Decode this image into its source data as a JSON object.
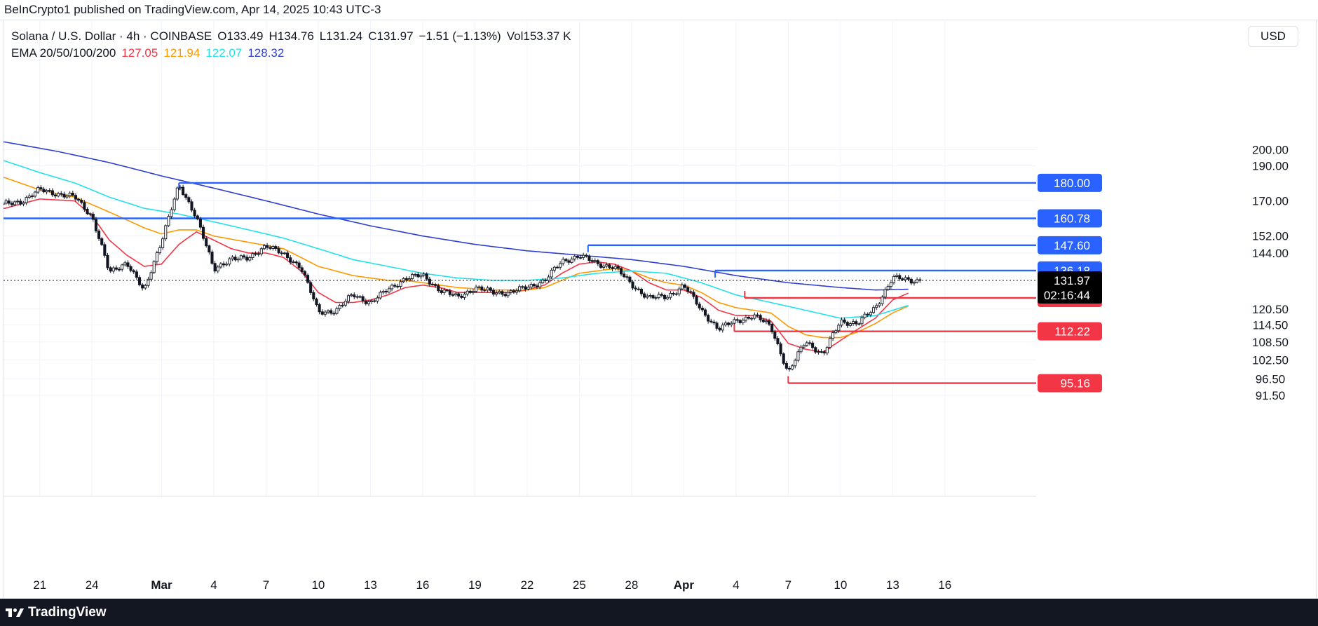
{
  "header": {
    "attribution": "BeInCrypto1 published on TradingView.com, Apr 14, 2025 10:43 UTC-3"
  },
  "legend": {
    "symbol": "Solana / U.S. Dollar · 4h · COINBASE",
    "open": "O133.49",
    "high": "H134.76",
    "low": "L131.24",
    "close": "C131.97",
    "change": "−1.51 (−1.13%)",
    "volume": "Vol153.37 K",
    "ema_label": "EMA 20/50/100/200",
    "ema_values": [
      {
        "value": "127.05",
        "color": "#f23645"
      },
      {
        "value": "121.94",
        "color": "#ff9800"
      },
      {
        "value": "122.07",
        "color": "#22e1e8"
      },
      {
        "value": "128.32",
        "color": "#2e3fcf"
      }
    ]
  },
  "currency_button": "USD",
  "footer": {
    "brand": "TradingView"
  },
  "colors": {
    "resistance": "#2962ff",
    "support": "#f23645",
    "candle": "#131722",
    "ema20": "#f23645",
    "ema50": "#ff9800",
    "ema100": "#22e1e8",
    "ema200": "#2e3fcf",
    "grid": "#f0f3fa"
  },
  "chart_data": {
    "type": "candlestick",
    "title": "Solana / U.S. Dollar · 4h · COINBASE",
    "timeframe": "4h",
    "y_scale": "log",
    "ylim": [
      89.5,
      216
    ],
    "xlim_days": [
      "Feb 19",
      "Apr 20"
    ],
    "y_ticks": [
      "200.00",
      "190.00",
      "170.00",
      "152.00",
      "144.00",
      "120.50",
      "114.50",
      "108.50",
      "102.50",
      "96.50",
      "91.50"
    ],
    "x_ticks": [
      {
        "label": "21",
        "day": 2
      },
      {
        "label": "24",
        "day": 5
      },
      {
        "label": "Mar",
        "day": 9,
        "bold": true
      },
      {
        "label": "4",
        "day": 12
      },
      {
        "label": "7",
        "day": 15
      },
      {
        "label": "10",
        "day": 18
      },
      {
        "label": "13",
        "day": 21
      },
      {
        "label": "16",
        "day": 24
      },
      {
        "label": "19",
        "day": 27
      },
      {
        "label": "22",
        "day": 30
      },
      {
        "label": "25",
        "day": 33
      },
      {
        "label": "28",
        "day": 36
      },
      {
        "label": "Apr",
        "day": 39,
        "bold": true
      },
      {
        "label": "4",
        "day": 42
      },
      {
        "label": "7",
        "day": 45
      },
      {
        "label": "10",
        "day": 48
      },
      {
        "label": "13",
        "day": 51
      },
      {
        "label": "16",
        "day": 54
      }
    ],
    "levels": [
      {
        "label": "180.00",
        "price": 180.0,
        "type": "resistance",
        "from_day": 10.0
      },
      {
        "label": "160.78",
        "price": 160.78,
        "type": "resistance",
        "from_day": -0.1
      },
      {
        "label": "147.60",
        "price": 147.6,
        "type": "resistance",
        "from_day": 33.5
      },
      {
        "label": "136.18",
        "price": 136.18,
        "type": "resistance",
        "from_day": 40.8
      },
      {
        "label": "124.81",
        "price": 124.81,
        "type": "support",
        "from_day": 42.5
      },
      {
        "label": "112.22",
        "price": 112.22,
        "type": "support",
        "from_day": 41.9
      },
      {
        "label": "95.16",
        "price": 95.16,
        "type": "support",
        "from_day": 45.0
      }
    ],
    "current_price": {
      "label": "131.97",
      "price": 131.97,
      "countdown": "02:16:44"
    },
    "close_anchors": [
      [
        0,
        168
      ],
      [
        1,
        170
      ],
      [
        2,
        176
      ],
      [
        3,
        174
      ],
      [
        4,
        172
      ],
      [
        5,
        162
      ],
      [
        6,
        135
      ],
      [
        7,
        140
      ],
      [
        8,
        127
      ],
      [
        9,
        150
      ],
      [
        10,
        178
      ],
      [
        11,
        162
      ],
      [
        12,
        136
      ],
      [
        13,
        142
      ],
      [
        14,
        141
      ],
      [
        15,
        148
      ],
      [
        16,
        143
      ],
      [
        17,
        138
      ],
      [
        18,
        119
      ],
      [
        19,
        120
      ],
      [
        20,
        126
      ],
      [
        21,
        123
      ],
      [
        22,
        128
      ],
      [
        23,
        133
      ],
      [
        24,
        134
      ],
      [
        25,
        128
      ],
      [
        26,
        125
      ],
      [
        27,
        129
      ],
      [
        28,
        127
      ],
      [
        29,
        127
      ],
      [
        30,
        129
      ],
      [
        31,
        132
      ],
      [
        32,
        140
      ],
      [
        33,
        143
      ],
      [
        34,
        139
      ],
      [
        35,
        138
      ],
      [
        36,
        130
      ],
      [
        37,
        125
      ],
      [
        38,
        125
      ],
      [
        39,
        130
      ],
      [
        40,
        120
      ],
      [
        41,
        113
      ],
      [
        42,
        116
      ],
      [
        43,
        118
      ],
      [
        44,
        114
      ],
      [
        45,
        98
      ],
      [
        46,
        109
      ],
      [
        47,
        104
      ],
      [
        48,
        116
      ],
      [
        49,
        115
      ],
      [
        50,
        121
      ],
      [
        51,
        133
      ],
      [
        52,
        132
      ],
      [
        52.6,
        131.97
      ]
    ],
    "ema": [
      {
        "name": "EMA 20",
        "value": 127.05,
        "color": "#f23645",
        "points": [
          [
            0,
            166
          ],
          [
            2,
            171
          ],
          [
            4,
            170
          ],
          [
            5,
            162
          ],
          [
            6,
            150
          ],
          [
            7,
            143
          ],
          [
            8,
            138
          ],
          [
            9,
            139
          ],
          [
            10,
            148
          ],
          [
            11,
            154
          ],
          [
            12,
            150
          ],
          [
            13,
            146
          ],
          [
            14,
            144
          ],
          [
            15,
            144
          ],
          [
            16,
            142
          ],
          [
            17,
            136
          ],
          [
            18,
            127
          ],
          [
            19,
            123
          ],
          [
            20,
            123
          ],
          [
            21,
            124
          ],
          [
            22,
            126
          ],
          [
            23,
            129
          ],
          [
            24,
            130
          ],
          [
            25,
            129
          ],
          [
            26,
            127
          ],
          [
            27,
            127
          ],
          [
            28,
            127
          ],
          [
            29,
            127
          ],
          [
            30,
            128
          ],
          [
            31,
            130
          ],
          [
            32,
            135
          ],
          [
            33,
            139
          ],
          [
            34,
            140
          ],
          [
            35,
            139
          ],
          [
            36,
            136
          ],
          [
            37,
            131
          ],
          [
            38,
            128
          ],
          [
            39,
            128
          ],
          [
            40,
            125
          ],
          [
            41,
            120
          ],
          [
            42,
            118
          ],
          [
            43,
            118
          ],
          [
            44,
            116
          ],
          [
            45,
            108
          ],
          [
            46,
            106
          ],
          [
            47,
            105
          ],
          [
            48,
            109
          ],
          [
            49,
            113
          ],
          [
            50,
            117
          ],
          [
            51,
            124
          ],
          [
            52,
            127.05
          ]
        ]
      },
      {
        "name": "EMA 50",
        "value": 121.94,
        "color": "#ff9800",
        "points": [
          [
            0,
            183
          ],
          [
            2,
            176
          ],
          [
            4,
            172
          ],
          [
            6,
            164
          ],
          [
            8,
            156
          ],
          [
            9,
            153
          ],
          [
            10,
            155
          ],
          [
            11,
            155
          ],
          [
            12,
            152
          ],
          [
            14,
            149
          ],
          [
            16,
            146
          ],
          [
            17,
            142
          ],
          [
            18,
            138
          ],
          [
            20,
            134
          ],
          [
            22,
            132
          ],
          [
            23,
            132
          ],
          [
            24,
            131
          ],
          [
            26,
            129
          ],
          [
            28,
            128
          ],
          [
            30,
            128
          ],
          [
            31,
            129
          ],
          [
            32,
            132
          ],
          [
            33,
            135
          ],
          [
            34,
            136
          ],
          [
            35,
            137
          ],
          [
            36,
            136
          ],
          [
            37,
            133
          ],
          [
            38,
            131
          ],
          [
            39,
            130
          ],
          [
            40,
            127
          ],
          [
            41,
            123
          ],
          [
            42,
            121
          ],
          [
            43,
            120
          ],
          [
            44,
            119
          ],
          [
            45,
            114
          ],
          [
            46,
            111
          ],
          [
            47,
            110
          ],
          [
            48,
            110
          ],
          [
            49,
            112
          ],
          [
            50,
            115
          ],
          [
            51,
            119
          ],
          [
            52,
            121.94
          ]
        ]
      },
      {
        "name": "EMA 100",
        "value": 122.07,
        "color": "#22e1e8",
        "points": [
          [
            0,
            193
          ],
          [
            2,
            186
          ],
          [
            4,
            180
          ],
          [
            6,
            172
          ],
          [
            8,
            166
          ],
          [
            10,
            163
          ],
          [
            12,
            159
          ],
          [
            14,
            155
          ],
          [
            16,
            151
          ],
          [
            18,
            146
          ],
          [
            20,
            141
          ],
          [
            22,
            138
          ],
          [
            24,
            135
          ],
          [
            26,
            133
          ],
          [
            28,
            132
          ],
          [
            30,
            132
          ],
          [
            32,
            133
          ],
          [
            34,
            135
          ],
          [
            36,
            136
          ],
          [
            38,
            135
          ],
          [
            40,
            131
          ],
          [
            42,
            126
          ],
          [
            44,
            123
          ],
          [
            46,
            120
          ],
          [
            48,
            117
          ],
          [
            50,
            118
          ],
          [
            51,
            120
          ],
          [
            52,
            122.07
          ]
        ]
      },
      {
        "name": "EMA 200",
        "value": 128.32,
        "color": "#2e3fcf",
        "points": [
          [
            0,
            205
          ],
          [
            3,
            199
          ],
          [
            6,
            192
          ],
          [
            9,
            184
          ],
          [
            12,
            177
          ],
          [
            15,
            170
          ],
          [
            18,
            163
          ],
          [
            21,
            157
          ],
          [
            24,
            152
          ],
          [
            27,
            148
          ],
          [
            30,
            145
          ],
          [
            33,
            143
          ],
          [
            36,
            141
          ],
          [
            39,
            138
          ],
          [
            42,
            134
          ],
          [
            45,
            131
          ],
          [
            48,
            129
          ],
          [
            50,
            128
          ],
          [
            52,
            128.32
          ]
        ]
      }
    ]
  }
}
